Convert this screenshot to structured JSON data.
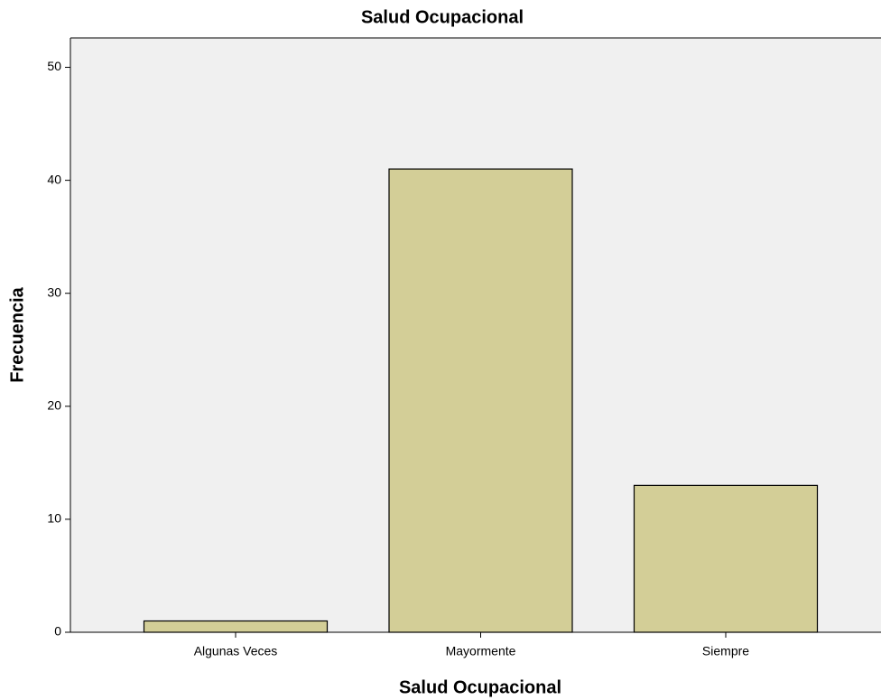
{
  "chart_data": {
    "type": "bar",
    "title": "Salud Ocupacional",
    "x_label": "Salud Ocupacional",
    "y_label": "Frecuencia",
    "categories": [
      "Algunas Veces",
      "Mayormente",
      "Siempre"
    ],
    "values": [
      1,
      41,
      13
    ],
    "color": "#d3ce97",
    "ylim": [
      0,
      52.6
    ],
    "yticks": [
      0,
      10,
      20,
      30,
      40,
      50
    ]
  }
}
